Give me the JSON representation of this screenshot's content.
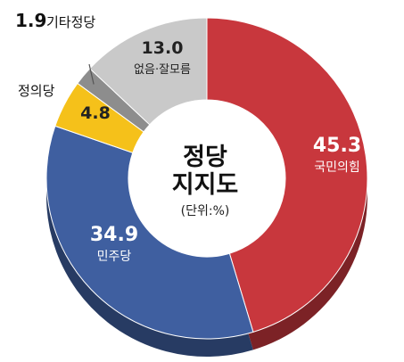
{
  "chart_data": {
    "type": "pie",
    "title": "정당 지지도",
    "title_lines": [
      "정당",
      "지지도"
    ],
    "unit": "(단위:%)",
    "slices": [
      {
        "name": "국민의힘",
        "value": 45.3,
        "value_label": "45.3",
        "color": "#c8373d"
      },
      {
        "name": "민주당",
        "value": 34.9,
        "value_label": "34.9",
        "color": "#3f5fa0"
      },
      {
        "name": "정의당",
        "value": 4.8,
        "value_label": "4.8",
        "color": "#f5c11a"
      },
      {
        "name": "기타정당",
        "value": 1.9,
        "value_label": "1.9",
        "color": "#8d8d8d"
      },
      {
        "name": "없음·잘모름",
        "value": 13.0,
        "value_label": "13.0",
        "color": "#c9c9c9"
      }
    ]
  }
}
